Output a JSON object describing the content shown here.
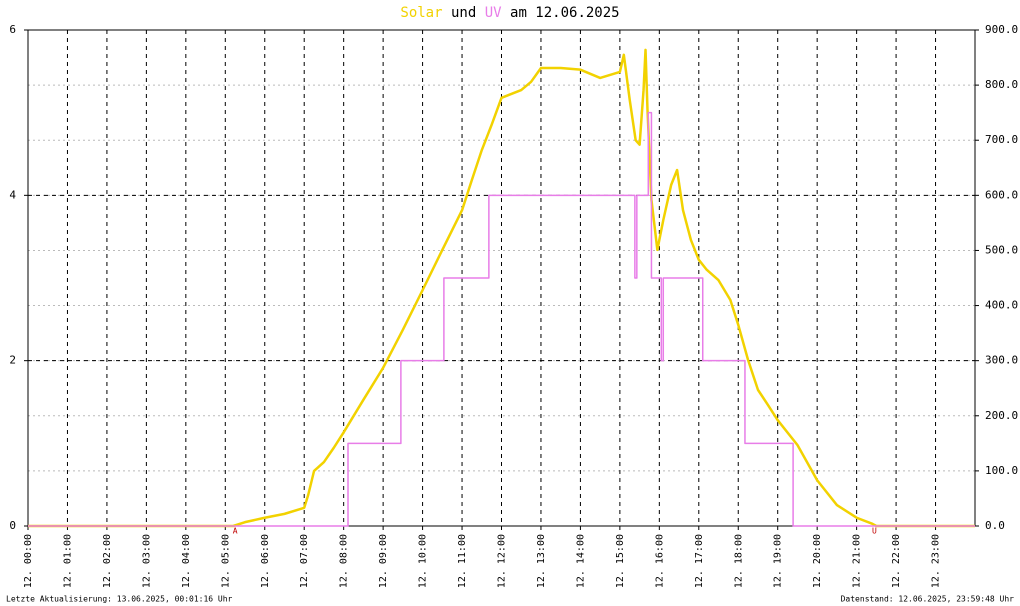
{
  "chart_data": {
    "type": "line",
    "title": {
      "joiner": "und",
      "rest": "am 12.06.2025"
    },
    "xlim": [
      0,
      24
    ],
    "xticks": [
      {
        "value": 0,
        "label": "12. 00:00"
      },
      {
        "value": 1,
        "label": "12. 01:00"
      },
      {
        "value": 2,
        "label": "12. 02:00"
      },
      {
        "value": 3,
        "label": "12. 03:00"
      },
      {
        "value": 4,
        "label": "12. 04:00"
      },
      {
        "value": 5,
        "label": "12. 05:00"
      },
      {
        "value": 6,
        "label": "12. 06:00"
      },
      {
        "value": 7,
        "label": "12. 07:00"
      },
      {
        "value": 8,
        "label": "12. 08:00"
      },
      {
        "value": 9,
        "label": "12. 09:00"
      },
      {
        "value": 10,
        "label": "12. 10:00"
      },
      {
        "value": 11,
        "label": "12. 11:00"
      },
      {
        "value": 12,
        "label": "12. 12:00"
      },
      {
        "value": 13,
        "label": "12. 13:00"
      },
      {
        "value": 14,
        "label": "12. 14:00"
      },
      {
        "value": 15,
        "label": "12. 15:00"
      },
      {
        "value": 16,
        "label": "12. 16:00"
      },
      {
        "value": 17,
        "label": "12. 17:00"
      },
      {
        "value": 18,
        "label": "12. 18:00"
      },
      {
        "value": 19,
        "label": "12. 19:00"
      },
      {
        "value": 20,
        "label": "12. 20:00"
      },
      {
        "value": 21,
        "label": "12. 21:00"
      },
      {
        "value": 22,
        "label": "12. 22:00"
      },
      {
        "value": 23,
        "label": "12. 23:00"
      }
    ],
    "ylim": [
      0,
      6
    ],
    "yticks": [
      0,
      2,
      4,
      6
    ],
    "y2lim": [
      0,
      900
    ],
    "y2ticks": [
      {
        "value": 0,
        "label": "0.0"
      },
      {
        "value": 100,
        "label": "100.0"
      },
      {
        "value": 200,
        "label": "200.0"
      },
      {
        "value": 300,
        "label": "300.0"
      },
      {
        "value": 400,
        "label": "400.0"
      },
      {
        "value": 500,
        "label": "500.0"
      },
      {
        "value": 600,
        "label": "600.0"
      },
      {
        "value": 700,
        "label": "700.0"
      },
      {
        "value": 800,
        "label": "800.0"
      },
      {
        "value": 900,
        "label": "900.0"
      }
    ],
    "grid": true,
    "series": [
      {
        "name": "Solar",
        "color": "#f2d200",
        "axis": "y2",
        "x": [
          0,
          5.2,
          5.5,
          6,
          6.5,
          7,
          7.1,
          7.25,
          7.5,
          7.75,
          8,
          8.5,
          9,
          9.5,
          10,
          10.5,
          11,
          11.25,
          11.5,
          11.75,
          12,
          12.5,
          12.75,
          13,
          13.5,
          14,
          14.5,
          15,
          15.1,
          15.25,
          15.4,
          15.5,
          15.6,
          15.65,
          15.7,
          15.8,
          15.95,
          16.1,
          16.3,
          16.45,
          16.6,
          16.8,
          17,
          17.2,
          17.5,
          17.8,
          18,
          18.25,
          18.5,
          18.75,
          19,
          19.5,
          20,
          20.5,
          21,
          21.4,
          21.5,
          24
        ],
        "values": [
          0,
          0,
          7,
          15,
          22,
          33,
          56,
          100,
          116,
          142,
          170,
          229,
          287,
          356,
          428,
          501,
          573,
          628,
          682,
          728,
          777,
          791,
          806,
          831,
          831,
          828,
          813,
          824,
          855,
          773,
          700,
          692,
          791,
          864,
          755,
          592,
          501,
          555,
          619,
          646,
          573,
          519,
          483,
          465,
          446,
          410,
          365,
          301,
          247,
          220,
          192,
          147,
          83,
          38,
          15,
          4,
          0,
          0
        ]
      },
      {
        "name": "UV",
        "color": "#e87de8",
        "axis": "y",
        "step": "post",
        "x": [
          0,
          8.11,
          9.45,
          10.54,
          11.68,
          15.38,
          15.43,
          15.72,
          15.8,
          16.05,
          16.1,
          17.1,
          18.17,
          19.39,
          24
        ],
        "values": [
          0,
          1,
          2,
          3,
          4,
          3,
          4,
          5,
          3,
          2,
          3,
          2,
          1,
          0,
          0
        ]
      }
    ],
    "annotations": [
      {
        "x": 5.25,
        "text": "A"
      },
      {
        "x": 21.45,
        "text": "U"
      }
    ],
    "footer_left": "Letzte Aktualisierung: 13.06.2025, 00:01:16 Uhr",
    "footer_right": "Datenstand: 12.06.2025, 23:59:48 Uhr"
  }
}
